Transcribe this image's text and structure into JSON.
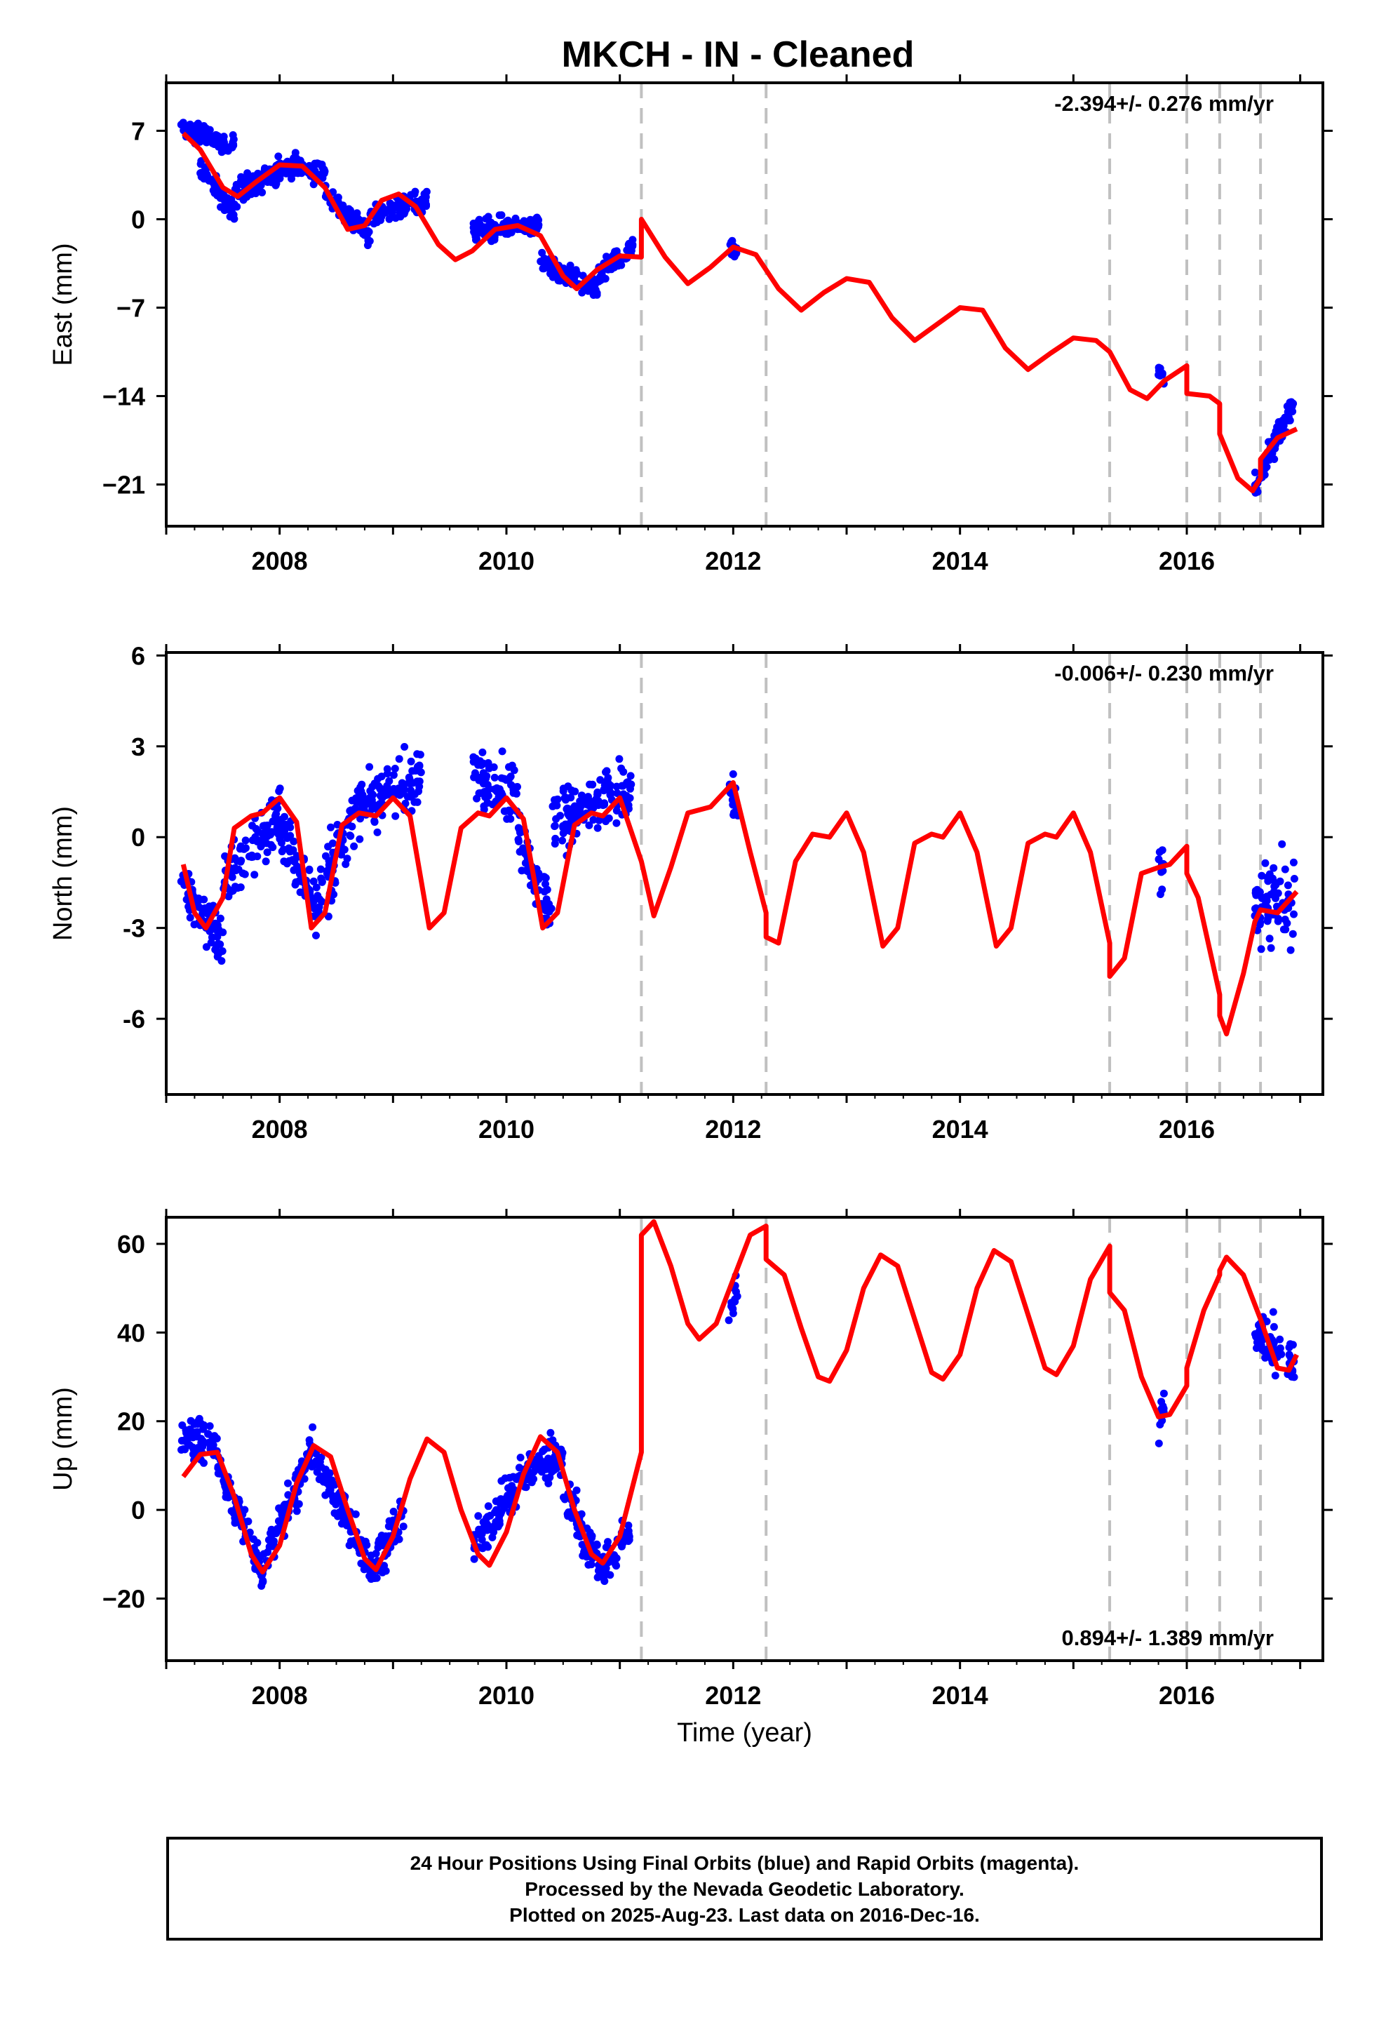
{
  "title": "MKCH  - IN - Cleaned",
  "footer": {
    "line1": "24 Hour Positions Using Final Orbits (blue) and Rapid Orbits (magenta).",
    "line2": "Processed by the Nevada Geodetic Laboratory.",
    "line3": "Plotted on 2025-Aug-23. Last data on 2016-Dec-16."
  },
  "colors": {
    "points": "#0000ff",
    "model": "#ff0000",
    "steps": "#c0c0c0",
    "axes": "#000000"
  },
  "chart_data": [
    {
      "type": "scatter",
      "panel": "east",
      "ylabel": "East (mm)",
      "xlabel": "",
      "rate_label": "-2.394+/- 0.276 mm/yr",
      "rate_position": "top-right",
      "xlim": [
        2007.0,
        2017.2
      ],
      "ylim": [
        -24.3,
        10.8
      ],
      "xticks": [
        2008,
        2010,
        2012,
        2014,
        2016
      ],
      "xtick_labels": [
        "2008",
        "2010",
        "2012",
        "2014",
        "2016"
      ],
      "yticks": [
        7,
        0,
        -7,
        -14,
        -21
      ],
      "ytick_labels": [
        "7",
        "0",
        "−7",
        "−14",
        "−21"
      ],
      "step_lines": [
        2011.19,
        2012.29,
        2015.32,
        2016.0,
        2016.29,
        2016.65
      ],
      "point_clusters": [
        {
          "x0": 2007.13,
          "x1": 2007.6,
          "y0": 7.2,
          "y1": 5.8,
          "spread": 1.6
        },
        {
          "x0": 2007.3,
          "x1": 2007.6,
          "y0": 4.0,
          "y1": 0.5,
          "spread": 2.0
        },
        {
          "x0": 2007.6,
          "x1": 2008.0,
          "y0": 2.0,
          "y1": 4.0,
          "spread": 2.2
        },
        {
          "x0": 2008.0,
          "x1": 2008.4,
          "y0": 4.2,
          "y1": 3.8,
          "spread": 2.0
        },
        {
          "x0": 2008.4,
          "x1": 2008.8,
          "y0": 2.0,
          "y1": -1.2,
          "spread": 1.8
        },
        {
          "x0": 2008.8,
          "x1": 2009.3,
          "y0": 0.2,
          "y1": 1.5,
          "spread": 1.8
        },
        {
          "x0": 2009.7,
          "x1": 2010.3,
          "y0": -1.0,
          "y1": -0.4,
          "spread": 1.9
        },
        {
          "x0": 2010.3,
          "x1": 2010.8,
          "y0": -3.5,
          "y1": -5.5,
          "spread": 1.6
        },
        {
          "x0": 2010.8,
          "x1": 2011.12,
          "y0": -4.5,
          "y1": -2.0,
          "spread": 1.8
        },
        {
          "x0": 2011.97,
          "x1": 2012.03,
          "y0": -2.0,
          "y1": -2.8,
          "spread": 1.4
        },
        {
          "x0": 2015.75,
          "x1": 2015.8,
          "y0": -12.0,
          "y1": -13.0,
          "spread": 1.6
        },
        {
          "x0": 2016.6,
          "x1": 2016.95,
          "y0": -21.0,
          "y1": -14.5,
          "spread": 2.2
        }
      ],
      "model": [
        [
          2007.15,
          6.8
        ],
        [
          2007.3,
          5.5
        ],
        [
          2007.5,
          2.5
        ],
        [
          2007.63,
          1.8
        ],
        [
          2007.8,
          3.0
        ],
        [
          2008.0,
          4.3
        ],
        [
          2008.2,
          4.2
        ],
        [
          2008.4,
          2.5
        ],
        [
          2008.6,
          -0.8
        ],
        [
          2008.75,
          -0.5
        ],
        [
          2008.9,
          1.5
        ],
        [
          2009.05,
          2.0
        ],
        [
          2009.2,
          1.0
        ],
        [
          2009.4,
          -2.0
        ],
        [
          2009.55,
          -3.2
        ],
        [
          2009.7,
          -2.5
        ],
        [
          2009.9,
          -0.8
        ],
        [
          2010.1,
          -0.5
        ],
        [
          2010.3,
          -1.3
        ],
        [
          2010.5,
          -4.5
        ],
        [
          2010.62,
          -5.5
        ],
        [
          2010.8,
          -4.0
        ],
        [
          2011.0,
          -2.9
        ],
        [
          2011.19,
          -3.0
        ],
        [
          2011.19,
          0.0
        ],
        [
          2011.4,
          -3.0
        ],
        [
          2011.6,
          -5.1
        ],
        [
          2011.8,
          -3.8
        ],
        [
          2012.0,
          -2.2
        ],
        [
          2012.2,
          -2.8
        ],
        [
          2012.4,
          -5.5
        ],
        [
          2012.6,
          -7.2
        ],
        [
          2012.8,
          -5.8
        ],
        [
          2013.0,
          -4.7
        ],
        [
          2013.2,
          -5.0
        ],
        [
          2013.4,
          -7.8
        ],
        [
          2013.6,
          -9.6
        ],
        [
          2013.8,
          -8.3
        ],
        [
          2014.0,
          -7.0
        ],
        [
          2014.2,
          -7.2
        ],
        [
          2014.4,
          -10.2
        ],
        [
          2014.6,
          -11.9
        ],
        [
          2014.8,
          -10.6
        ],
        [
          2015.0,
          -9.4
        ],
        [
          2015.2,
          -9.6
        ],
        [
          2015.32,
          -10.5
        ],
        [
          2015.5,
          -13.5
        ],
        [
          2015.65,
          -14.2
        ],
        [
          2015.8,
          -12.8
        ],
        [
          2016.0,
          -11.6
        ],
        [
          2016.0,
          -13.8
        ],
        [
          2016.2,
          -14.0
        ],
        [
          2016.29,
          -14.6
        ],
        [
          2016.29,
          -17.0
        ],
        [
          2016.45,
          -20.5
        ],
        [
          2016.58,
          -21.5
        ],
        [
          2016.65,
          -20.5
        ],
        [
          2016.65,
          -19.0
        ],
        [
          2016.8,
          -17.3
        ],
        [
          2016.97,
          -16.6
        ]
      ]
    },
    {
      "type": "scatter",
      "panel": "north",
      "ylabel": "North (mm)",
      "xlabel": "",
      "rate_label": "-0.006+/- 0.230 mm/yr",
      "rate_position": "top-right",
      "xlim": [
        2007.0,
        2017.2
      ],
      "ylim": [
        -8.5,
        6.1
      ],
      "xticks": [
        2008,
        2010,
        2012,
        2014,
        2016
      ],
      "xtick_labels": [
        "2008",
        "2010",
        "2012",
        "2014",
        "2016"
      ],
      "yticks": [
        6,
        3,
        0,
        -3,
        -6
      ],
      "ytick_labels": [
        "6",
        "3",
        "0",
        "-3",
        "-6"
      ],
      "step_lines": [
        2011.19,
        2012.29,
        2015.32,
        2016.0,
        2016.29,
        2016.65
      ],
      "point_clusters": [
        {
          "x0": 2007.13,
          "x1": 2007.5,
          "y0": -1.5,
          "y1": -3.5,
          "spread": 2.0
        },
        {
          "x0": 2007.5,
          "x1": 2008.0,
          "y0": -1.5,
          "y1": 0.8,
          "spread": 2.2
        },
        {
          "x0": 2008.0,
          "x1": 2008.35,
          "y0": 0.5,
          "y1": -2.5,
          "spread": 2.2
        },
        {
          "x0": 2008.35,
          "x1": 2008.7,
          "y0": -2.0,
          "y1": 1.0,
          "spread": 2.2
        },
        {
          "x0": 2008.7,
          "x1": 2009.25,
          "y0": 1.0,
          "y1": 2.0,
          "spread": 2.0
        },
        {
          "x0": 2009.7,
          "x1": 2010.1,
          "y0": 2.2,
          "y1": 1.5,
          "spread": 2.0
        },
        {
          "x0": 2010.1,
          "x1": 2010.4,
          "y0": 0.0,
          "y1": -2.5,
          "spread": 2.0
        },
        {
          "x0": 2010.4,
          "x1": 2011.1,
          "y0": 0.5,
          "y1": 1.5,
          "spread": 2.2
        },
        {
          "x0": 2011.96,
          "x1": 2012.04,
          "y0": 1.5,
          "y1": 1.0,
          "spread": 1.3
        },
        {
          "x0": 2015.75,
          "x1": 2015.8,
          "y0": -0.5,
          "y1": -1.5,
          "spread": 2.4
        },
        {
          "x0": 2016.6,
          "x1": 2016.95,
          "y0": -2.5,
          "y1": -2.0,
          "spread": 3.0
        }
      ],
      "model": [
        [
          2007.15,
          -0.9
        ],
        [
          2007.25,
          -2.5
        ],
        [
          2007.35,
          -3.0
        ],
        [
          2007.5,
          -2.0
        ],
        [
          2007.6,
          0.3
        ],
        [
          2007.75,
          0.7
        ],
        [
          2007.85,
          0.8
        ],
        [
          2008.0,
          1.3
        ],
        [
          2008.15,
          0.5
        ],
        [
          2008.28,
          -3.0
        ],
        [
          2008.4,
          -2.5
        ],
        [
          2008.55,
          0.4
        ],
        [
          2008.7,
          0.8
        ],
        [
          2008.85,
          0.7
        ],
        [
          2009.0,
          1.3
        ],
        [
          2009.15,
          0.7
        ],
        [
          2009.32,
          -3.0
        ],
        [
          2009.45,
          -2.5
        ],
        [
          2009.6,
          0.3
        ],
        [
          2009.75,
          0.8
        ],
        [
          2009.85,
          0.7
        ],
        [
          2010.0,
          1.3
        ],
        [
          2010.15,
          0.6
        ],
        [
          2010.32,
          -3.0
        ],
        [
          2010.45,
          -2.5
        ],
        [
          2010.6,
          0.4
        ],
        [
          2010.75,
          0.8
        ],
        [
          2010.85,
          0.7
        ],
        [
          2011.0,
          1.3
        ],
        [
          2011.19,
          -0.8
        ],
        [
          2011.3,
          -2.6
        ],
        [
          2011.45,
          -1.0
        ],
        [
          2011.6,
          0.8
        ],
        [
          2011.8,
          1.0
        ],
        [
          2012.0,
          1.8
        ],
        [
          2012.15,
          -0.5
        ],
        [
          2012.29,
          -2.5
        ],
        [
          2012.29,
          -3.3
        ],
        [
          2012.4,
          -3.5
        ],
        [
          2012.55,
          -0.8
        ],
        [
          2012.7,
          0.1
        ],
        [
          2012.85,
          0.0
        ],
        [
          2013.0,
          0.8
        ],
        [
          2013.15,
          -0.5
        ],
        [
          2013.32,
          -3.6
        ],
        [
          2013.45,
          -3.0
        ],
        [
          2013.6,
          -0.2
        ],
        [
          2013.75,
          0.1
        ],
        [
          2013.85,
          0.0
        ],
        [
          2014.0,
          0.8
        ],
        [
          2014.15,
          -0.5
        ],
        [
          2014.32,
          -3.6
        ],
        [
          2014.45,
          -3.0
        ],
        [
          2014.6,
          -0.2
        ],
        [
          2014.75,
          0.1
        ],
        [
          2014.85,
          0.0
        ],
        [
          2015.0,
          0.8
        ],
        [
          2015.15,
          -0.5
        ],
        [
          2015.32,
          -3.5
        ],
        [
          2015.32,
          -4.6
        ],
        [
          2015.45,
          -4.0
        ],
        [
          2015.6,
          -1.2
        ],
        [
          2015.75,
          -1.0
        ],
        [
          2015.85,
          -0.9
        ],
        [
          2016.0,
          -0.3
        ],
        [
          2016.0,
          -1.2
        ],
        [
          2016.1,
          -2.0
        ],
        [
          2016.29,
          -5.2
        ],
        [
          2016.29,
          -5.9
        ],
        [
          2016.35,
          -6.5
        ],
        [
          2016.5,
          -4.5
        ],
        [
          2016.6,
          -2.8
        ],
        [
          2016.65,
          -2.4
        ],
        [
          2016.65,
          -2.4
        ],
        [
          2016.8,
          -2.5
        ],
        [
          2016.97,
          -1.8
        ]
      ]
    },
    {
      "type": "scatter",
      "panel": "up",
      "ylabel": "Up (mm)",
      "xlabel": "Time (year)",
      "rate_label": "0.894+/- 1.389 mm/yr",
      "rate_position": "bottom-right",
      "xlim": [
        2007.0,
        2017.2
      ],
      "ylim": [
        -34.0,
        66.0
      ],
      "xticks": [
        2008,
        2010,
        2012,
        2014,
        2016
      ],
      "xtick_labels": [
        "2008",
        "2010",
        "2012",
        "2014",
        "2016"
      ],
      "yticks": [
        60,
        40,
        20,
        0,
        -20
      ],
      "ytick_labels": [
        "60",
        "40",
        "20",
        "0",
        "−20"
      ],
      "step_lines": [
        2011.19,
        2012.29,
        2015.32,
        2016.0,
        2016.29,
        2016.65
      ],
      "point_clusters": [
        {
          "x0": 2007.13,
          "x1": 2007.45,
          "y0": 17.0,
          "y1": 15.0,
          "spread": 10
        },
        {
          "x0": 2007.45,
          "x1": 2007.85,
          "y0": 10.0,
          "y1": -14.0,
          "spread": 10
        },
        {
          "x0": 2007.85,
          "x1": 2008.3,
          "y0": -12.0,
          "y1": 14.0,
          "spread": 10
        },
        {
          "x0": 2008.3,
          "x1": 2008.85,
          "y0": 12.0,
          "y1": -14.0,
          "spread": 10
        },
        {
          "x0": 2008.85,
          "x1": 2009.1,
          "y0": -12.0,
          "y1": 0.0,
          "spread": 10
        },
        {
          "x0": 2009.7,
          "x1": 2010.1,
          "y0": -8.0,
          "y1": 5.0,
          "spread": 10
        },
        {
          "x0": 2010.1,
          "x1": 2010.5,
          "y0": 8.0,
          "y1": 12.0,
          "spread": 10
        },
        {
          "x0": 2010.5,
          "x1": 2010.85,
          "y0": 5.0,
          "y1": -14.0,
          "spread": 12
        },
        {
          "x0": 2010.85,
          "x1": 2011.1,
          "y0": -14.0,
          "y1": -4.0,
          "spread": 10
        },
        {
          "x0": 2011.96,
          "x1": 2012.04,
          "y0": 44.0,
          "y1": 50.0,
          "spread": 8
        },
        {
          "x0": 2015.75,
          "x1": 2015.8,
          "y0": 20.0,
          "y1": 22.0,
          "spread": 10
        },
        {
          "x0": 2016.6,
          "x1": 2016.95,
          "y0": 40.0,
          "y1": 33.0,
          "spread": 14
        }
      ],
      "model": [
        [
          2007.15,
          7.5
        ],
        [
          2007.3,
          12.5
        ],
        [
          2007.45,
          13.0
        ],
        [
          2007.6,
          3.0
        ],
        [
          2007.75,
          -10.0
        ],
        [
          2007.85,
          -14.0
        ],
        [
          2008.0,
          -8.0
        ],
        [
          2008.15,
          6.0
        ],
        [
          2008.3,
          14.5
        ],
        [
          2008.45,
          12.0
        ],
        [
          2008.6,
          0.0
        ],
        [
          2008.75,
          -11.0
        ],
        [
          2008.85,
          -13.5
        ],
        [
          2009.0,
          -6.0
        ],
        [
          2009.15,
          7.0
        ],
        [
          2009.3,
          16.0
        ],
        [
          2009.45,
          13.0
        ],
        [
          2009.6,
          0.0
        ],
        [
          2009.75,
          -10.0
        ],
        [
          2009.85,
          -12.5
        ],
        [
          2010.0,
          -5.0
        ],
        [
          2010.15,
          8.0
        ],
        [
          2010.3,
          16.5
        ],
        [
          2010.45,
          13.0
        ],
        [
          2010.6,
          0.0
        ],
        [
          2010.75,
          -10.0
        ],
        [
          2010.85,
          -12.0
        ],
        [
          2011.0,
          -6.0
        ],
        [
          2011.19,
          13.0
        ],
        [
          2011.19,
          62.0
        ],
        [
          2011.3,
          65.0
        ],
        [
          2011.45,
          55.0
        ],
        [
          2011.6,
          42.0
        ],
        [
          2011.7,
          38.5
        ],
        [
          2011.85,
          42.0
        ],
        [
          2012.0,
          52.0
        ],
        [
          2012.15,
          62.0
        ],
        [
          2012.29,
          64.0
        ],
        [
          2012.29,
          56.5
        ],
        [
          2012.45,
          53.0
        ],
        [
          2012.6,
          41.0
        ],
        [
          2012.75,
          30.0
        ],
        [
          2012.85,
          29.0
        ],
        [
          2013.0,
          36.0
        ],
        [
          2013.15,
          50.0
        ],
        [
          2013.3,
          57.5
        ],
        [
          2013.45,
          55.0
        ],
        [
          2013.6,
          43.0
        ],
        [
          2013.75,
          31.0
        ],
        [
          2013.85,
          29.5
        ],
        [
          2014.0,
          35.0
        ],
        [
          2014.15,
          50.0
        ],
        [
          2014.3,
          58.5
        ],
        [
          2014.45,
          56.0
        ],
        [
          2014.6,
          44.0
        ],
        [
          2014.75,
          32.0
        ],
        [
          2014.85,
          30.5
        ],
        [
          2015.0,
          37.0
        ],
        [
          2015.15,
          52.0
        ],
        [
          2015.32,
          59.5
        ],
        [
          2015.32,
          49.0
        ],
        [
          2015.45,
          45.0
        ],
        [
          2015.6,
          30.0
        ],
        [
          2015.75,
          21.0
        ],
        [
          2015.85,
          21.5
        ],
        [
          2016.0,
          28.0
        ],
        [
          2016.0,
          32.0
        ],
        [
          2016.15,
          45.0
        ],
        [
          2016.29,
          53.0
        ],
        [
          2016.29,
          54.0
        ],
        [
          2016.35,
          57.0
        ],
        [
          2016.5,
          53.0
        ],
        [
          2016.65,
          43.0
        ],
        [
          2016.8,
          32.0
        ],
        [
          2016.9,
          31.5
        ],
        [
          2016.97,
          35.0
        ]
      ]
    }
  ]
}
